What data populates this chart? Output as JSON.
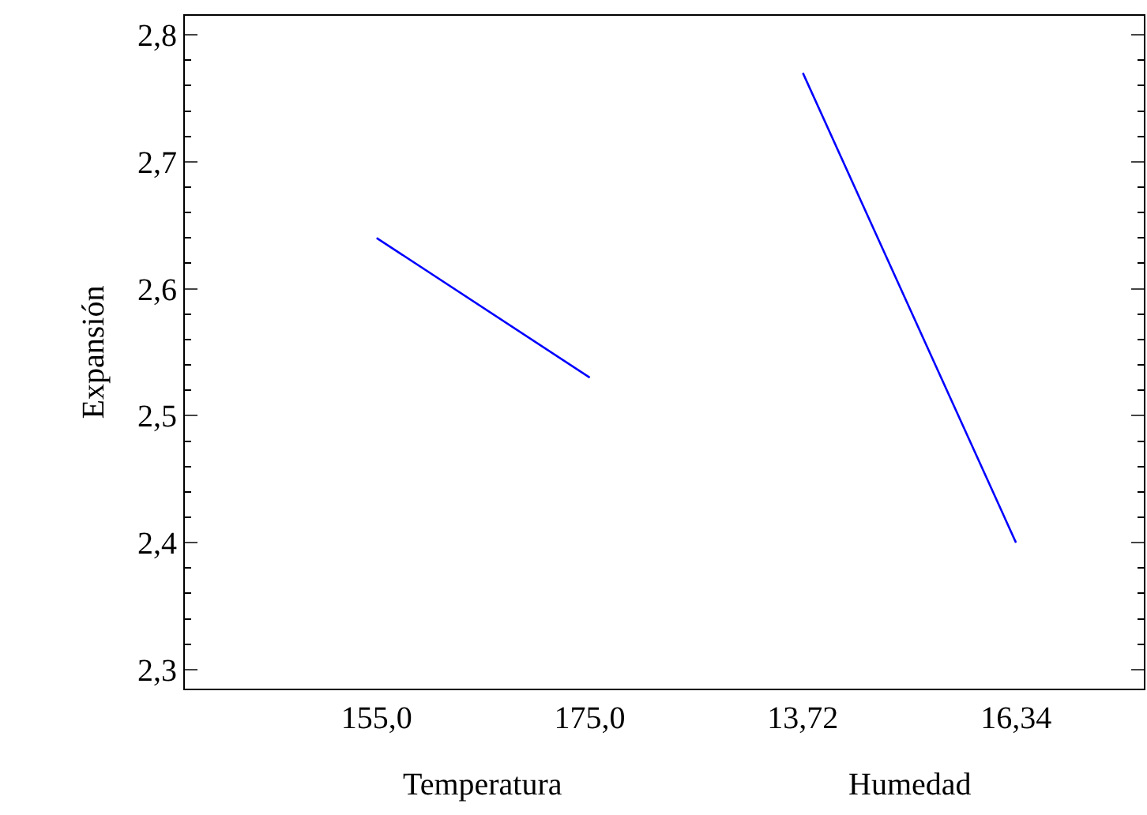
{
  "chart_data": {
    "type": "line",
    "ylabel": "Expansión",
    "categories": [
      "155,0",
      "175,0",
      "13,72",
      "16,34"
    ],
    "series": [
      {
        "color": "#0000ff",
        "values": [
          2.64,
          2.53,
          null,
          null
        ]
      },
      {
        "color": "#0000ff",
        "values": [
          null,
          null,
          2.77,
          2.4
        ]
      }
    ],
    "ylim": [
      2.285,
      2.815
    ],
    "yticks": [
      {
        "value": 2.3,
        "label": "2,3"
      },
      {
        "value": 2.4,
        "label": "2,4"
      },
      {
        "value": 2.5,
        "label": "2,5"
      },
      {
        "value": 2.6,
        "label": "2,6"
      },
      {
        "value": 2.7,
        "label": "2,7"
      },
      {
        "value": 2.8,
        "label": "2,8"
      }
    ],
    "annotations": [
      "Temperatura",
      "Humedad"
    ],
    "marker": "none"
  }
}
